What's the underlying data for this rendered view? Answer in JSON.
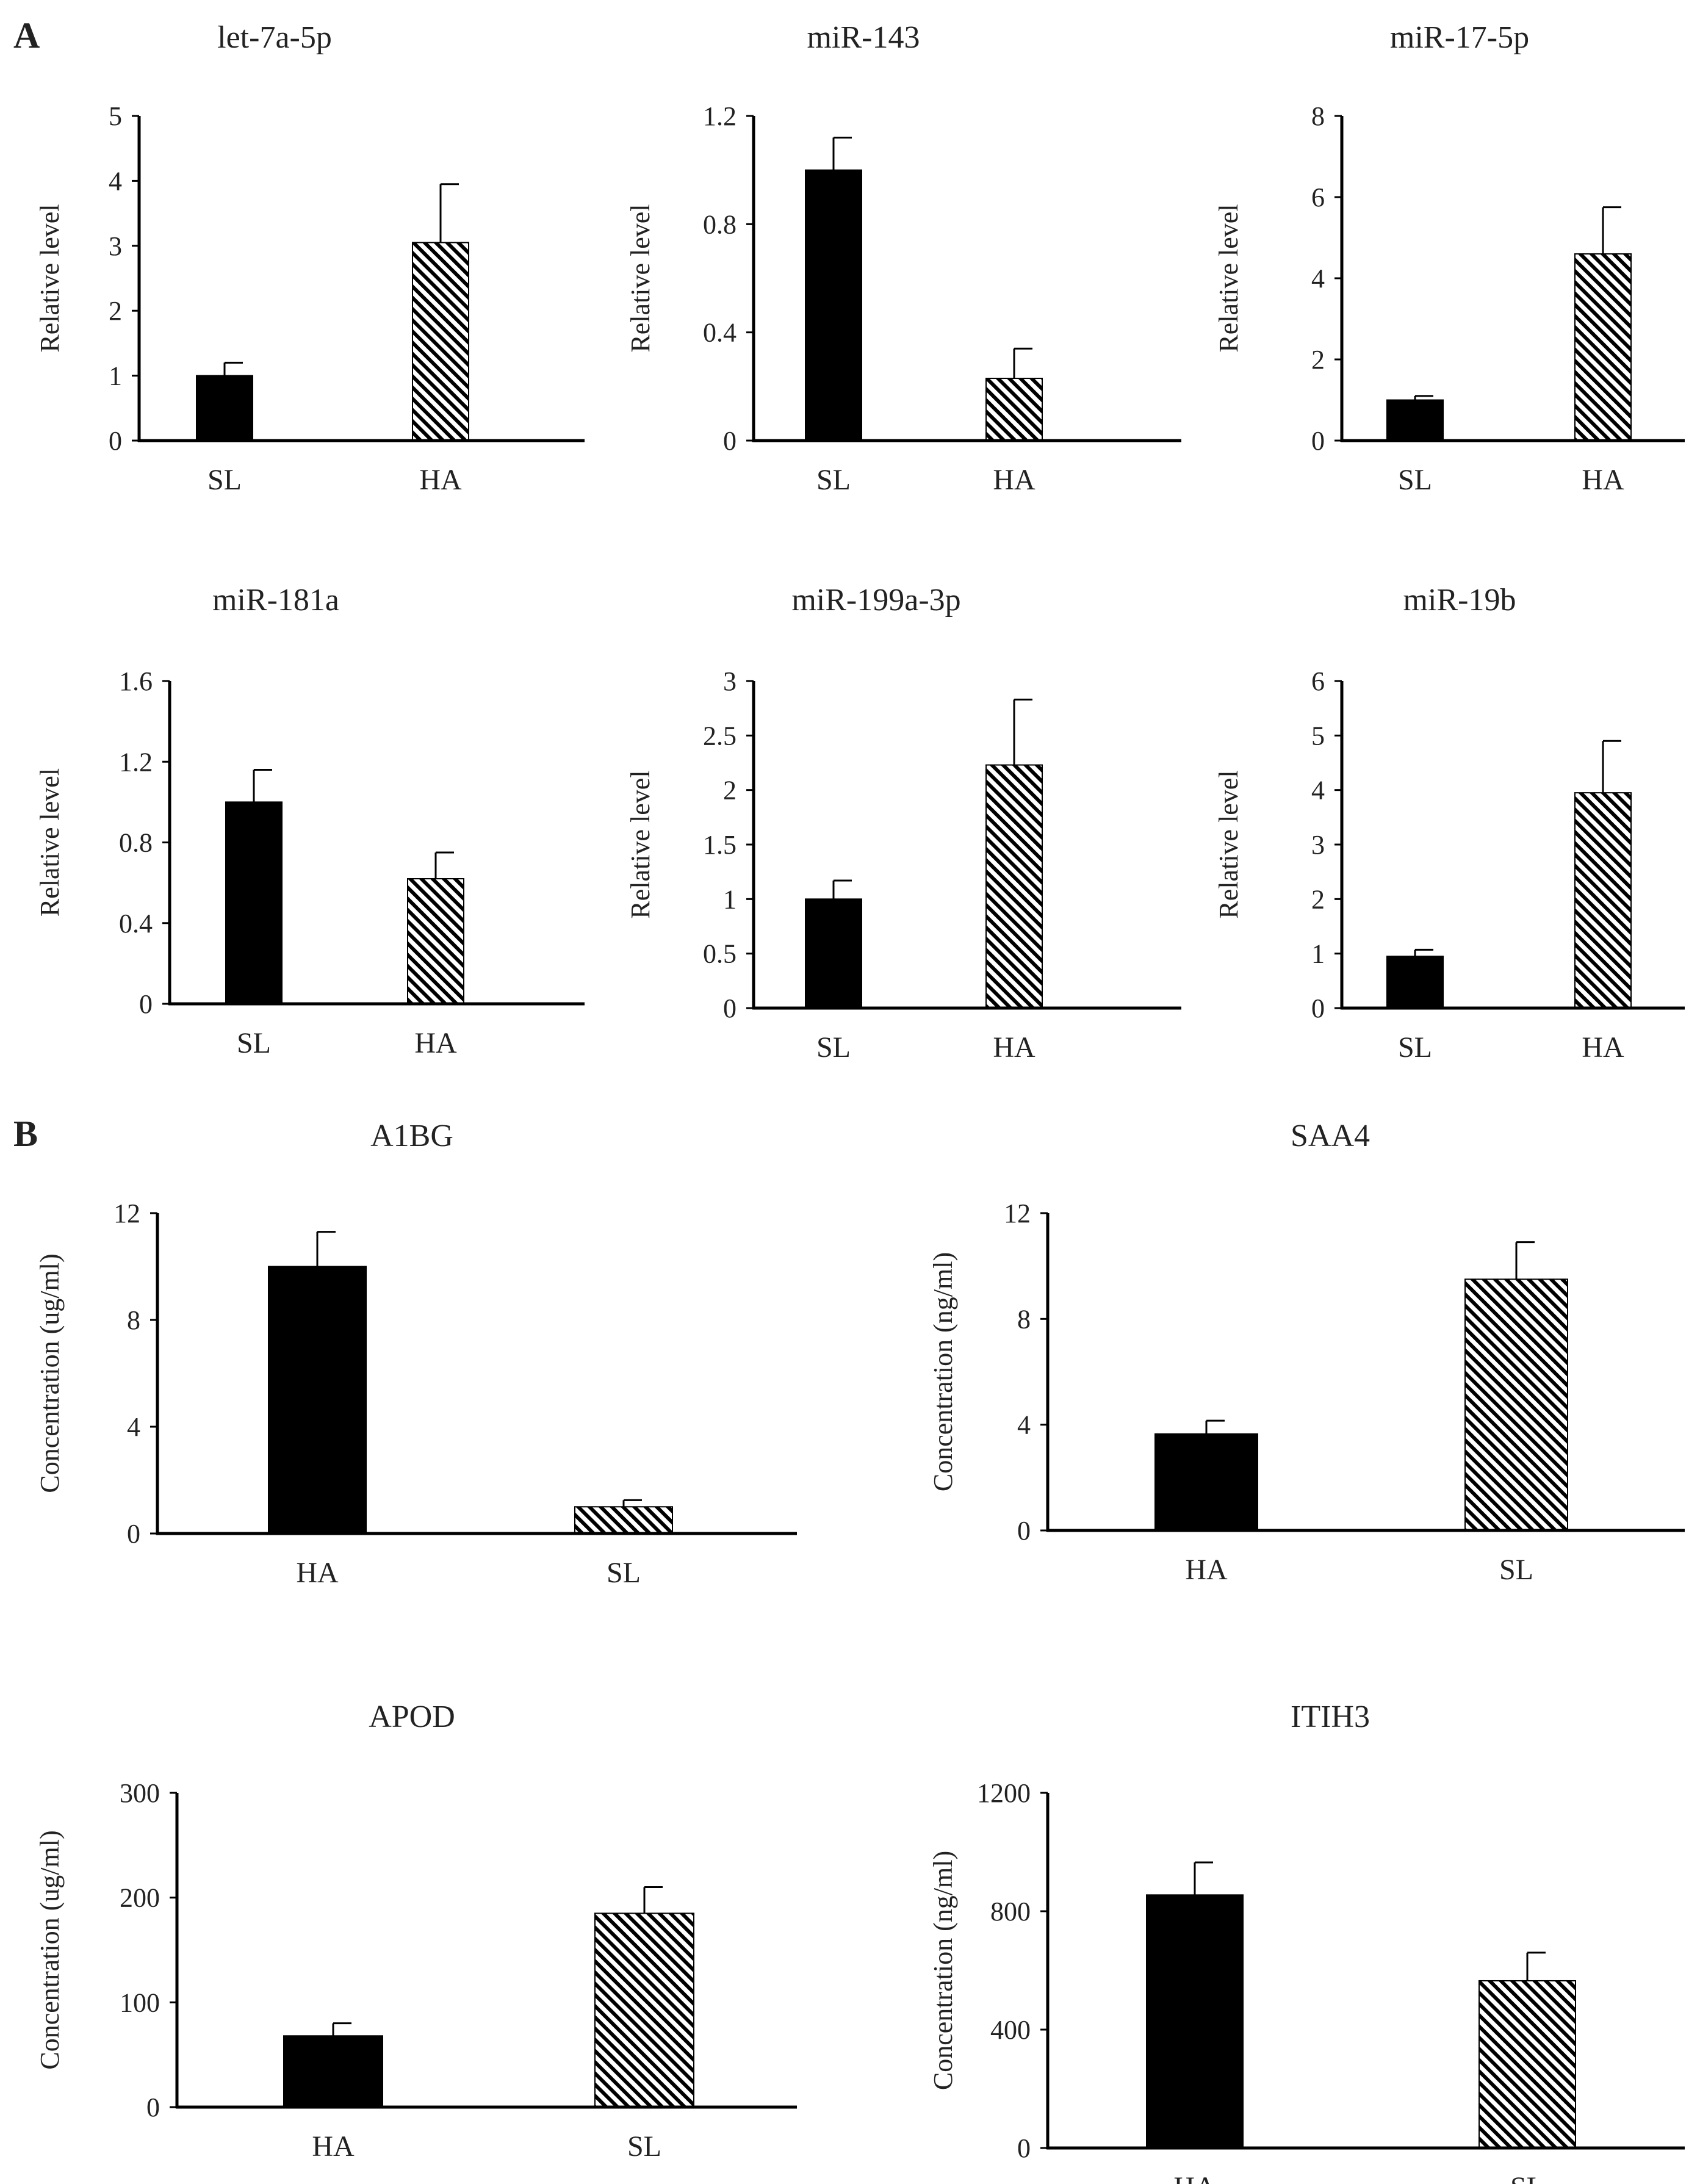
{
  "figure": {
    "panel_labels": [
      "A",
      "B"
    ],
    "colors": {
      "solid_bar": "#000000",
      "hatched_bar": "#000000",
      "axis": "#000000",
      "text": "#222222"
    }
  },
  "chart_data": [
    {
      "type": "bar",
      "panel": "A",
      "title": "let-7a-5p",
      "categories": [
        "SL",
        "HA"
      ],
      "values": [
        1.0,
        3.05
      ],
      "errors": [
        0.2,
        0.9
      ],
      "bar_styles": [
        "solid",
        "hatched"
      ],
      "xlabel": "",
      "ylabel": "Relative level",
      "ylim": [
        0,
        5
      ],
      "yticks": [
        0,
        1,
        2,
        3,
        4,
        5
      ],
      "ytick_labels": [
        "0",
        "1",
        "2",
        "3",
        "4",
        "5"
      ],
      "grid": false
    },
    {
      "type": "bar",
      "panel": "A",
      "title": "miR-143",
      "categories": [
        "SL",
        "HA"
      ],
      "values": [
        1.0,
        0.23
      ],
      "errors": [
        0.12,
        0.11
      ],
      "bar_styles": [
        "solid",
        "hatched"
      ],
      "xlabel": "",
      "ylabel": "Relative level",
      "ylim": [
        0,
        1.2
      ],
      "yticks": [
        0,
        0.4,
        0.8,
        1.2
      ],
      "ytick_labels": [
        "0",
        "0.4",
        "0.8",
        "1.2"
      ],
      "grid": false
    },
    {
      "type": "bar",
      "panel": "A",
      "title": "miR-17-5p",
      "categories": [
        "SL",
        "HA"
      ],
      "values": [
        1.0,
        4.6
      ],
      "errors": [
        0.1,
        1.15
      ],
      "bar_styles": [
        "solid",
        "hatched"
      ],
      "xlabel": "",
      "ylabel": "Relative level",
      "ylim": [
        0,
        8
      ],
      "yticks": [
        0,
        2,
        4,
        6,
        8
      ],
      "ytick_labels": [
        "0",
        "2",
        "4",
        "6",
        "8"
      ],
      "grid": false
    },
    {
      "type": "bar",
      "panel": "A",
      "title": "miR-181a",
      "categories": [
        "SL",
        "HA"
      ],
      "values": [
        1.0,
        0.62
      ],
      "errors": [
        0.16,
        0.13
      ],
      "bar_styles": [
        "solid",
        "hatched"
      ],
      "xlabel": "",
      "ylabel": "Relative level",
      "ylim": [
        0,
        1.6
      ],
      "yticks": [
        0,
        0.4,
        0.8,
        1.2,
        1.6
      ],
      "ytick_labels": [
        "0",
        "0.4",
        "0.8",
        "1.2",
        "1.6"
      ],
      "grid": false
    },
    {
      "type": "bar",
      "panel": "A",
      "title": "miR-199a-3p",
      "categories": [
        "SL",
        "HA"
      ],
      "values": [
        1.0,
        2.23
      ],
      "errors": [
        0.17,
        0.6
      ],
      "bar_styles": [
        "solid",
        "hatched"
      ],
      "xlabel": "",
      "ylabel": "Relative level",
      "ylim": [
        0,
        3
      ],
      "yticks": [
        0,
        0.5,
        1,
        1.5,
        2,
        2.5,
        3
      ],
      "ytick_labels": [
        "0",
        "0.5",
        "1",
        "1.5",
        "2",
        "2.5",
        "3"
      ],
      "grid": false
    },
    {
      "type": "bar",
      "panel": "A",
      "title": "miR-19b",
      "categories": [
        "SL",
        "HA"
      ],
      "values": [
        0.95,
        3.95
      ],
      "errors": [
        0.12,
        0.95
      ],
      "bar_styles": [
        "solid",
        "hatched"
      ],
      "xlabel": "",
      "ylabel": "Relative level",
      "ylim": [
        0,
        6
      ],
      "yticks": [
        0,
        1,
        2,
        3,
        4,
        5,
        6
      ],
      "ytick_labels": [
        "0",
        "1",
        "2",
        "3",
        "4",
        "5",
        "6"
      ],
      "grid": false
    },
    {
      "type": "bar",
      "panel": "B",
      "title": "A1BG",
      "categories": [
        "HA",
        "SL"
      ],
      "values": [
        10.0,
        1.0
      ],
      "errors": [
        1.3,
        0.25
      ],
      "bar_styles": [
        "solid",
        "hatched"
      ],
      "xlabel": "",
      "ylabel": "Concentration (ug/ml)",
      "ylim": [
        0,
        12
      ],
      "yticks": [
        0,
        4,
        8,
        12
      ],
      "ytick_labels": [
        "0",
        "4",
        "8",
        "12"
      ],
      "grid": false
    },
    {
      "type": "bar",
      "panel": "B",
      "title": "SAA4",
      "categories": [
        "HA",
        "SL"
      ],
      "values": [
        3.65,
        9.5
      ],
      "errors": [
        0.5,
        1.4
      ],
      "bar_styles": [
        "solid",
        "hatched"
      ],
      "xlabel": "",
      "ylabel": "Concentration (ng/ml)",
      "ylim": [
        0,
        12
      ],
      "yticks": [
        0,
        4,
        8,
        12
      ],
      "ytick_labels": [
        "0",
        "4",
        "8",
        "12"
      ],
      "grid": false
    },
    {
      "type": "bar",
      "panel": "B",
      "title": "APOD",
      "categories": [
        "HA",
        "SL"
      ],
      "values": [
        68,
        185
      ],
      "errors": [
        12,
        25
      ],
      "bar_styles": [
        "solid",
        "hatched"
      ],
      "xlabel": "",
      "ylabel": "Concentration (ug/ml)",
      "ylim": [
        0,
        300
      ],
      "yticks": [
        0,
        100,
        200,
        300
      ],
      "ytick_labels": [
        "0",
        "100",
        "200",
        "300"
      ],
      "grid": false
    },
    {
      "type": "bar",
      "panel": "B",
      "title": "ITIH3",
      "categories": [
        "HA",
        "SL"
      ],
      "values": [
        855,
        565
      ],
      "errors": [
        110,
        95
      ],
      "bar_styles": [
        "solid",
        "hatched"
      ],
      "xlabel": "",
      "ylabel": "Concentration (ng/ml)",
      "ylim": [
        0,
        1200
      ],
      "yticks": [
        0,
        400,
        800,
        1200
      ],
      "ytick_labels": [
        "0",
        "400",
        "800",
        "1200"
      ],
      "grid": false
    }
  ]
}
